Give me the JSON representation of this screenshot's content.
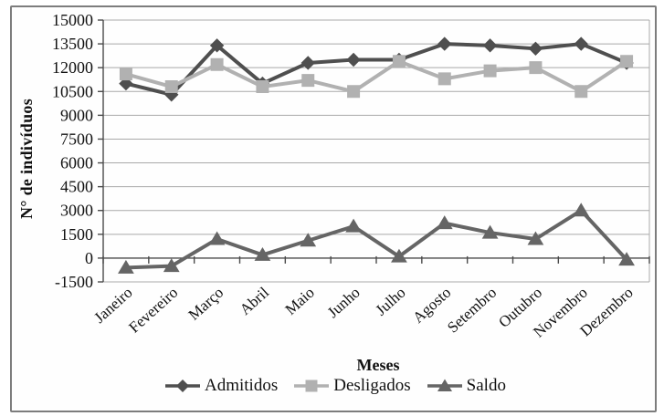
{
  "figure": {
    "background": "#ffffff",
    "border_color": "#7d7d7d",
    "text_color": "#111111",
    "gridline_color": "#a9a9a9",
    "axis_color": "#4a4a4a"
  },
  "chart_data": {
    "type": "line",
    "title": "",
    "xlabel": "Meses",
    "ylabel": "N° de indivíduos",
    "categories": [
      "Janeiro",
      "Fevereiro",
      "Março",
      "Abril",
      "Maio",
      "Junho",
      "Julho",
      "Agosto",
      "Setembro",
      "Outubro",
      "Novembro",
      "Dezembro"
    ],
    "series": [
      {
        "name": "Admitidos",
        "marker": "diamond",
        "color": "#4f4f4f",
        "values": [
          11000,
          10300,
          13400,
          11000,
          12300,
          12500,
          12500,
          13500,
          13400,
          13200,
          13500,
          12300
        ]
      },
      {
        "name": "Desligados",
        "marker": "square",
        "color": "#b1b1b1",
        "values": [
          11600,
          10800,
          12200,
          10800,
          11200,
          10500,
          12400,
          11300,
          11800,
          12000,
          10500,
          12400
        ]
      },
      {
        "name": "Saldo",
        "marker": "triangle",
        "color": "#656565",
        "values": [
          -600,
          -500,
          1200,
          200,
          1100,
          2000,
          100,
          2200,
          1600,
          1200,
          3000,
          -100
        ]
      }
    ],
    "ylim": [
      -1500,
      15000
    ],
    "ytick_step": 1500,
    "yticks": [
      15000,
      13500,
      12000,
      10500,
      9000,
      7500,
      6000,
      4500,
      3000,
      1500,
      0,
      -1500
    ],
    "grid": true,
    "legend_position": "bottom",
    "x_label_rotation_deg": -42
  }
}
